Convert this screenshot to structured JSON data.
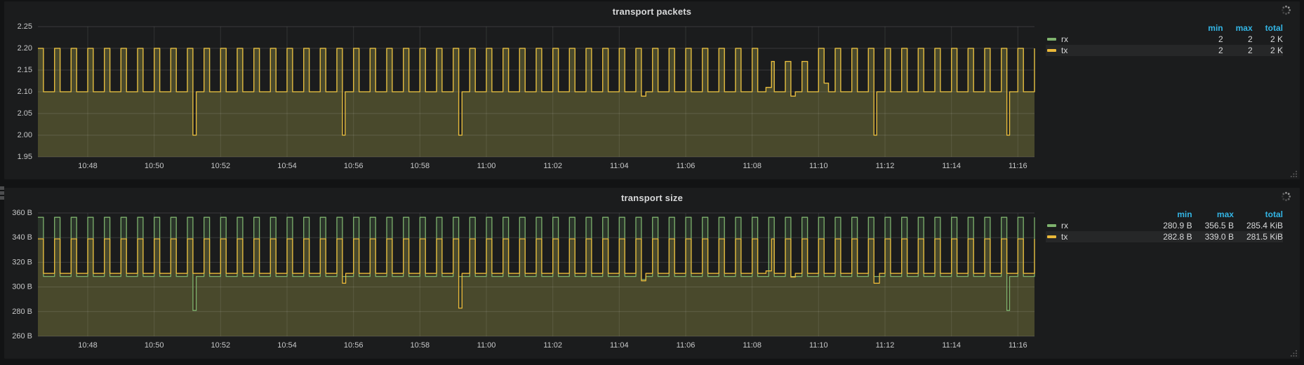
{
  "dashboard": {
    "bg": "#121314",
    "panel_bg": "#1b1c1d",
    "accent_blue": "#33b5e5",
    "grid_color": "rgba(255,255,255,0.13)",
    "tick_text_color": "#c7c8c9"
  },
  "icons": {
    "spinner": "loading-spinner",
    "resize": "panel-resize-handle",
    "drag": "edge-drag-handle"
  },
  "chart_data": [
    {
      "type": "line",
      "title": "transport packets",
      "legend_position": "right-table",
      "grid": true,
      "x": {
        "start": "10:46:30",
        "end": "11:16:30",
        "ticks": [
          "10:48",
          "10:50",
          "10:52",
          "10:54",
          "10:56",
          "10:58",
          "11:00",
          "11:02",
          "11:04",
          "11:06",
          "11:08",
          "11:10",
          "11:12",
          "11:14",
          "11:16"
        ]
      },
      "y": {
        "min": 1.95,
        "max": 2.25,
        "ticks": [
          {
            "label": "2.25",
            "value": 2.25
          },
          {
            "label": "2.20",
            "value": 2.2
          },
          {
            "label": "2.15",
            "value": 2.15
          },
          {
            "label": "2.10",
            "value": 2.1
          },
          {
            "label": "2.05",
            "value": 2.05
          },
          {
            "label": "2.00",
            "value": 2.0
          },
          {
            "label": "1.95",
            "value": 1.95
          }
        ]
      },
      "series": [
        {
          "name": "rx",
          "color": "#7eb26d",
          "low": 2.1,
          "high": 2.2,
          "period_s": 30,
          "high_s": 10,
          "dips": [
            {
              "time": "10:51:10",
              "value": 2.0,
              "duration_s": 6
            },
            {
              "time": "10:55:40",
              "value": 2.0,
              "duration_s": 5
            },
            {
              "time": "10:59:10",
              "value": 2.0,
              "duration_s": 6
            },
            {
              "time": "11:11:40",
              "value": 2.0,
              "duration_s": 5
            },
            {
              "time": "11:15:40",
              "value": 2.0,
              "duration_s": 5
            }
          ],
          "steps": [
            {
              "time": "11:04:40",
              "value": 2.09,
              "duration_s": 8
            },
            {
              "time": "11:08:25",
              "value": 2.11,
              "duration_s": 10
            },
            {
              "time": "11:09:10",
              "value": 2.09,
              "duration_s": 8
            },
            {
              "time": "11:10:10",
              "value": 2.12,
              "duration_s": 8
            }
          ],
          "reduced_peaks": [
            {
              "from": "11:08:10",
              "to": "11:09:35",
              "high": 2.17
            }
          ]
        },
        {
          "name": "tx",
          "color": "#eab839",
          "low": 2.1,
          "high": 2.2,
          "period_s": 30,
          "high_s": 10,
          "dips": [
            {
              "time": "10:51:10",
              "value": 2.0,
              "duration_s": 6
            },
            {
              "time": "10:55:40",
              "value": 2.0,
              "duration_s": 5
            },
            {
              "time": "10:59:10",
              "value": 2.0,
              "duration_s": 6
            },
            {
              "time": "11:11:40",
              "value": 2.0,
              "duration_s": 5
            },
            {
              "time": "11:15:40",
              "value": 2.0,
              "duration_s": 5
            }
          ],
          "steps": [
            {
              "time": "11:04:40",
              "value": 2.09,
              "duration_s": 8
            },
            {
              "time": "11:08:25",
              "value": 2.11,
              "duration_s": 10
            },
            {
              "time": "11:09:10",
              "value": 2.09,
              "duration_s": 8
            },
            {
              "time": "11:10:10",
              "value": 2.12,
              "duration_s": 8
            }
          ],
          "reduced_peaks": [
            {
              "from": "11:08:10",
              "to": "11:09:35",
              "high": 2.17
            }
          ]
        }
      ],
      "legend": {
        "headers": [
          "min",
          "max",
          "total"
        ],
        "rows": [
          {
            "name": "rx",
            "color": "#7eb26d",
            "values": [
              "2",
              "2",
              "2 K"
            ]
          },
          {
            "name": "tx",
            "color": "#eab839",
            "values": [
              "2",
              "2",
              "2 K"
            ]
          }
        ]
      }
    },
    {
      "type": "line",
      "title": "transport size",
      "legend_position": "right-table",
      "grid": true,
      "x": {
        "start": "10:46:30",
        "end": "11:16:30",
        "ticks": [
          "10:48",
          "10:50",
          "10:52",
          "10:54",
          "10:56",
          "10:58",
          "11:00",
          "11:02",
          "11:04",
          "11:06",
          "11:08",
          "11:10",
          "11:12",
          "11:14",
          "11:16"
        ]
      },
      "y": {
        "min": 260,
        "max": 360,
        "ticks": [
          {
            "label": "360 B",
            "value": 360
          },
          {
            "label": "340 B",
            "value": 340
          },
          {
            "label": "320 B",
            "value": 320
          },
          {
            "label": "300 B",
            "value": 300
          },
          {
            "label": "280 B",
            "value": 280
          },
          {
            "label": "260 B",
            "value": 260
          }
        ]
      },
      "series": [
        {
          "name": "rx",
          "color": "#7eb26d",
          "low": 308.5,
          "high": 356.5,
          "period_s": 30,
          "high_s": 10,
          "dips": [
            {
              "time": "10:51:10",
              "value": 280.9,
              "duration_s": 6
            },
            {
              "time": "11:15:40",
              "value": 280.9,
              "duration_s": 5
            }
          ],
          "steps": [
            {
              "time": "11:04:40",
              "value": 306,
              "duration_s": 8
            }
          ],
          "reduced_peaks": []
        },
        {
          "name": "tx",
          "color": "#eab839",
          "low": 311,
          "high": 339,
          "period_s": 30,
          "high_s": 10,
          "dips": [
            {
              "time": "10:55:40",
              "value": 303,
              "duration_s": 6
            },
            {
              "time": "10:59:10",
              "value": 282.8,
              "duration_s": 6
            },
            {
              "time": "11:11:40",
              "value": 303,
              "duration_s": 10
            }
          ],
          "steps": [
            {
              "time": "11:04:40",
              "value": 305,
              "duration_s": 8
            },
            {
              "time": "11:08:25",
              "value": 313,
              "duration_s": 10
            },
            {
              "time": "11:09:10",
              "value": 308,
              "duration_s": 8
            }
          ],
          "reduced_peaks": []
        }
      ],
      "legend": {
        "headers": [
          "min",
          "max",
          "total"
        ],
        "rows": [
          {
            "name": "rx",
            "color": "#7eb26d",
            "values": [
              "280.9 B",
              "356.5 B",
              "285.4 KiB"
            ]
          },
          {
            "name": "tx",
            "color": "#eab839",
            "values": [
              "282.8 B",
              "339.0 B",
              "281.5 KiB"
            ]
          }
        ]
      }
    }
  ]
}
